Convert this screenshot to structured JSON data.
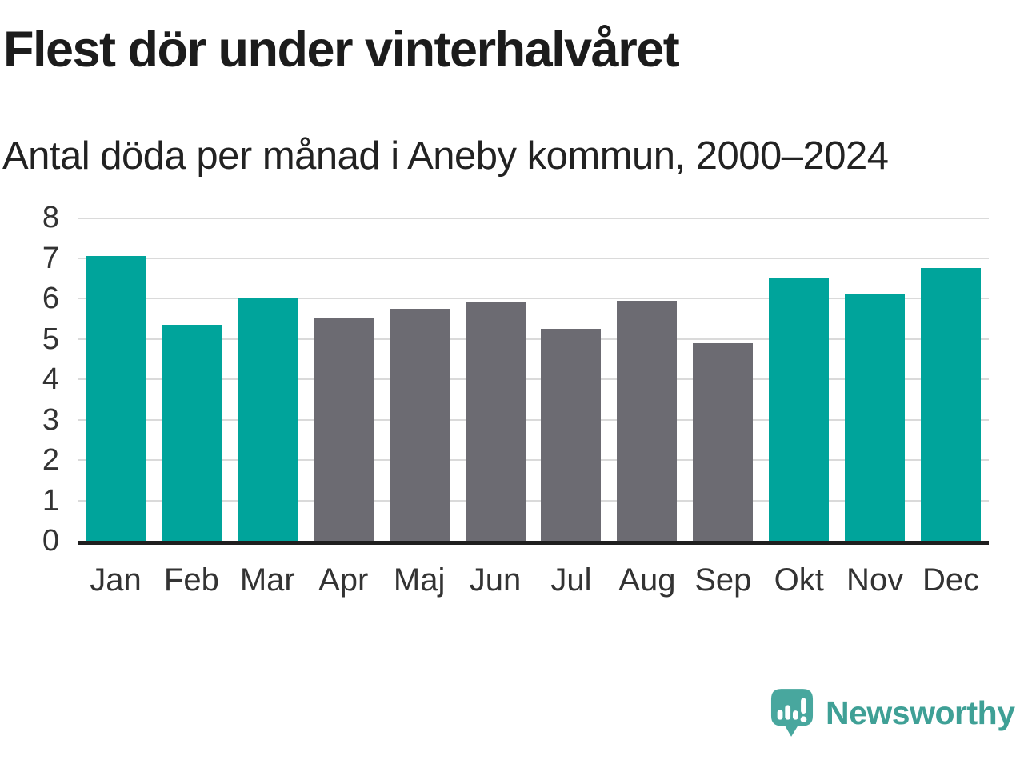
{
  "chart_data": {
    "type": "bar",
    "title": "Flest dör under vinterhalvåret",
    "subtitle": "Antal döda per månad i Aneby kommun, 2000–2024",
    "categories": [
      "Jan",
      "Feb",
      "Mar",
      "Apr",
      "Maj",
      "Jun",
      "Jul",
      "Aug",
      "Sep",
      "Okt",
      "Nov",
      "Dec"
    ],
    "values": [
      7.05,
      5.35,
      6.0,
      5.5,
      5.75,
      5.9,
      5.25,
      5.95,
      4.9,
      6.5,
      6.1,
      6.75
    ],
    "highlight_winter_months": [
      true,
      true,
      true,
      false,
      false,
      false,
      false,
      false,
      false,
      true,
      true,
      true
    ],
    "ylim": [
      0,
      8
    ],
    "yticks": [
      0,
      1,
      2,
      3,
      4,
      5,
      6,
      7,
      8
    ],
    "xlabel": "",
    "ylabel": "",
    "grid": true,
    "legend": "none",
    "colors": {
      "winter_bar": "#00a49b",
      "summer_bar": "#6c6b72",
      "gridline": "#dadada",
      "axis_line": "#1f1f1f",
      "tick_text": "#333333"
    }
  },
  "footer": {
    "brand": "Newsworthy",
    "logo_icon": "speech-bubble-with-bar-chart-and-exclamation",
    "logo_bubble_color": "#48a79e",
    "brand_text_color": "#3fa096"
  }
}
